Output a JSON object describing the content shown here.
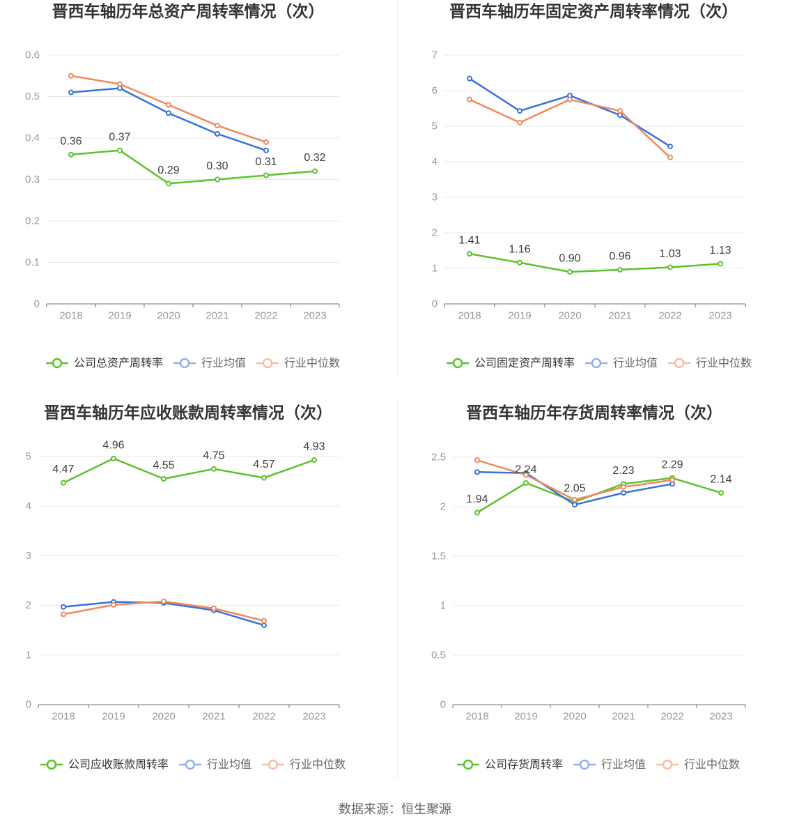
{
  "footer": {
    "source": "数据来源：恒生聚源"
  },
  "chart_data": [
    {
      "type": "line",
      "title": "晋西车轴历年总资产周转率情况（次）",
      "categories": [
        "2018",
        "2019",
        "2020",
        "2021",
        "2022",
        "2023"
      ],
      "ylim": [
        0,
        0.6
      ],
      "yticks": [
        0,
        0.1,
        0.2,
        0.3,
        0.4,
        0.5,
        0.6
      ],
      "grid": true,
      "legend": "bottom",
      "series": [
        {
          "name": "公司总资产周转率",
          "color": "#5bc22a",
          "values": [
            0.36,
            0.37,
            0.29,
            0.3,
            0.31,
            0.32
          ],
          "data_labels": [
            "0.36",
            "0.37",
            "0.29",
            "0.30",
            "0.31",
            "0.32"
          ]
        },
        {
          "name": "行业均值",
          "color": "#3a70db",
          "values": [
            0.51,
            0.52,
            0.46,
            0.41,
            0.37,
            null
          ]
        },
        {
          "name": "行业中位数",
          "color": "#ee8a5b",
          "values": [
            0.55,
            0.53,
            0.48,
            0.43,
            0.39,
            null
          ]
        }
      ]
    },
    {
      "type": "line",
      "title": "晋西车轴历年固定资产周转率情况（次）",
      "categories": [
        "2018",
        "2019",
        "2020",
        "2021",
        "2022",
        "2023"
      ],
      "ylim": [
        0,
        7
      ],
      "yticks": [
        0,
        1,
        2,
        3,
        4,
        5,
        6,
        7
      ],
      "grid": true,
      "legend": "bottom",
      "series": [
        {
          "name": "公司固定资产周转率",
          "color": "#5bc22a",
          "values": [
            1.41,
            1.16,
            0.9,
            0.96,
            1.03,
            1.13
          ],
          "data_labels": [
            "1.41",
            "1.16",
            "0.90",
            "0.96",
            "1.03",
            "1.13"
          ]
        },
        {
          "name": "行业均值",
          "color": "#3a70db",
          "values": [
            6.34,
            5.43,
            5.86,
            5.31,
            4.43,
            null
          ]
        },
        {
          "name": "行业中位数",
          "color": "#ee8a5b",
          "values": [
            5.75,
            5.1,
            5.75,
            5.43,
            4.12,
            null
          ]
        }
      ]
    },
    {
      "type": "line",
      "title": "晋西车轴历年应收账款周转率情况（次）",
      "categories": [
        "2018",
        "2019",
        "2020",
        "2021",
        "2022",
        "2023"
      ],
      "ylim": [
        0,
        5
      ],
      "yticks": [
        0,
        1,
        2,
        3,
        4,
        5
      ],
      "grid": true,
      "legend": "bottom",
      "series": [
        {
          "name": "公司应收账款周转率",
          "color": "#5bc22a",
          "values": [
            4.47,
            4.96,
            4.55,
            4.75,
            4.57,
            4.93
          ],
          "data_labels": [
            "4.47",
            "4.96",
            "4.55",
            "4.75",
            "4.57",
            "4.93"
          ]
        },
        {
          "name": "行业均值",
          "color": "#3a70db",
          "values": [
            1.97,
            2.07,
            2.05,
            1.9,
            1.6,
            null
          ]
        },
        {
          "name": "行业中位数",
          "color": "#ee8a5b",
          "values": [
            1.82,
            2.01,
            2.08,
            1.94,
            1.69,
            null
          ]
        }
      ]
    },
    {
      "type": "line",
      "title": "晋西车轴历年存货周转率情况（次）",
      "categories": [
        "2018",
        "2019",
        "2020",
        "2021",
        "2022",
        "2023"
      ],
      "ylim": [
        0,
        2.5
      ],
      "yticks": [
        0,
        0.5,
        1,
        1.5,
        2,
        2.5
      ],
      "grid": true,
      "legend": "bottom",
      "series": [
        {
          "name": "公司存货周转率",
          "color": "#5bc22a",
          "values": [
            1.94,
            2.24,
            2.05,
            2.23,
            2.29,
            2.14
          ],
          "data_labels": [
            "1.94",
            "2.24",
            "2.05",
            "2.23",
            "2.29",
            "2.14"
          ]
        },
        {
          "name": "行业均值",
          "color": "#3a70db",
          "values": [
            2.35,
            2.34,
            2.02,
            2.14,
            2.23,
            null
          ]
        },
        {
          "name": "行业中位数",
          "color": "#ee8a5b",
          "values": [
            2.47,
            2.32,
            2.07,
            2.2,
            2.27,
            null
          ]
        }
      ]
    }
  ]
}
